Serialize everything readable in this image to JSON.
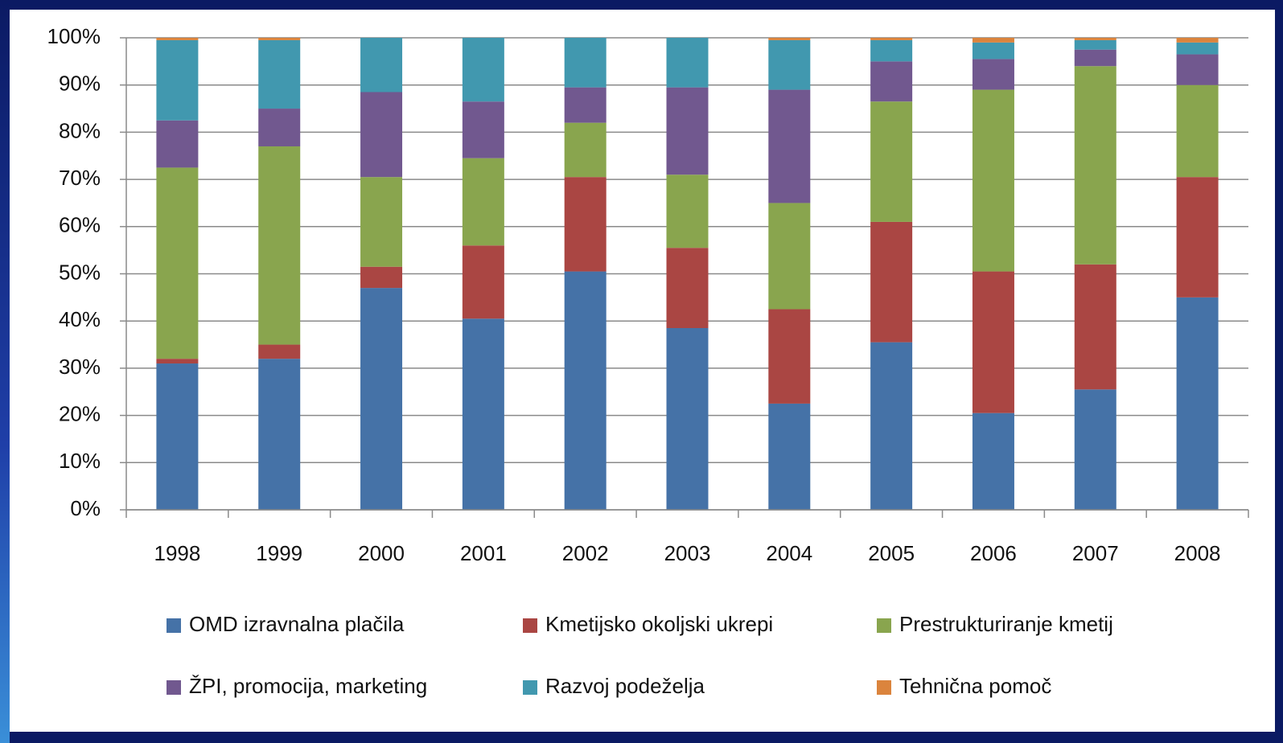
{
  "chart_data": {
    "type": "stacked_bar",
    "categories": [
      "1998",
      "1999",
      "2000",
      "2001",
      "2002",
      "2003",
      "2004",
      "2005",
      "2006",
      "2007",
      "2008"
    ],
    "series": [
      {
        "name": "OMD izravnalna plačila",
        "color": "#4572a7",
        "values": [
          31,
          32,
          47,
          40.5,
          50.5,
          38.5,
          22.5,
          35.5,
          20.5,
          25.5,
          45
        ]
      },
      {
        "name": "Kmetijsko okoljski  ukrepi",
        "color": "#aa4643",
        "values": [
          1,
          3,
          4.5,
          15.5,
          20,
          17,
          20,
          25.5,
          30,
          26.5,
          25.5
        ]
      },
      {
        "name": "Prestrukturiranje kmetij",
        "color": "#89a54e",
        "values": [
          40.5,
          42,
          19,
          18.5,
          11.5,
          15.5,
          22.5,
          25.5,
          38.5,
          42,
          19.5
        ]
      },
      {
        "name": "ŽPI, promocija, marketing",
        "color": "#71588f",
        "values": [
          10,
          8,
          18,
          12,
          7.5,
          18.5,
          24,
          8.5,
          6.5,
          3.5,
          6.5
        ]
      },
      {
        "name": "Razvoj podeželja",
        "color": "#4198af",
        "values": [
          17,
          14.5,
          11.5,
          13.5,
          10.5,
          10.5,
          10.5,
          4.5,
          3.5,
          2,
          2.5
        ]
      },
      {
        "name": "Tehnična pomoč",
        "color": "#db843d",
        "values": [
          0.5,
          0.5,
          0,
          0,
          0,
          0,
          0.5,
          0.5,
          1,
          0.5,
          1
        ]
      }
    ],
    "ylim": [
      0,
      100
    ],
    "yticks": [
      {
        "value": 0,
        "label": "0%"
      },
      {
        "value": 10,
        "label": "10%"
      },
      {
        "value": 20,
        "label": "20%"
      },
      {
        "value": 30,
        "label": "30%"
      },
      {
        "value": 40,
        "label": "40%"
      },
      {
        "value": 50,
        "label": "50%"
      },
      {
        "value": 60,
        "label": "60%"
      },
      {
        "value": 70,
        "label": "70%"
      },
      {
        "value": 80,
        "label": "80%"
      },
      {
        "value": 90,
        "label": "90%"
      },
      {
        "value": 100,
        "label": "100%"
      }
    ],
    "grid": true,
    "legend": "bottom"
  }
}
